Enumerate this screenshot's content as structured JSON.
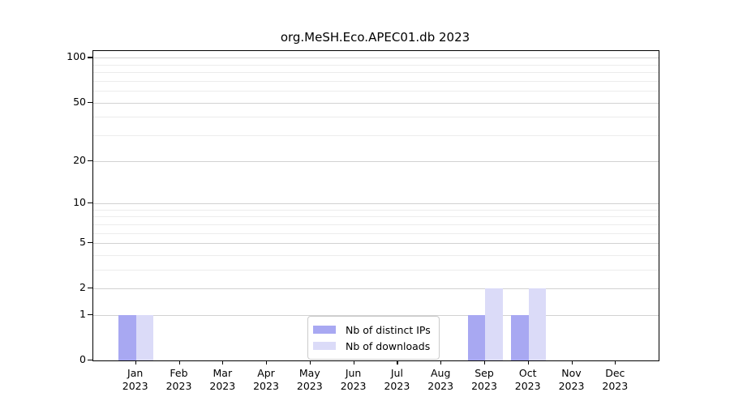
{
  "title": "org.MeSH.Eco.APEC01.db 2023",
  "colors": {
    "distinct_ips": "#a8a8f2",
    "downloads": "#dbdbf8",
    "grid_major": "#d2d2d2",
    "grid_minor": "#ececec",
    "axis": "#000000"
  },
  "legend": {
    "items": [
      {
        "label": "Nb of distinct IPs",
        "color_key": "distinct_ips"
      },
      {
        "label": "Nb of downloads",
        "color_key": "downloads"
      }
    ]
  },
  "chart_data": {
    "type": "bar",
    "title": "org.MeSH.Eco.APEC01.db 2023",
    "categories": [
      "Jan",
      "Feb",
      "Mar",
      "Apr",
      "May",
      "Jun",
      "Jul",
      "Aug",
      "Sep",
      "Oct",
      "Nov",
      "Dec"
    ],
    "year": "2023",
    "series": [
      {
        "name": "Nb of distinct IPs",
        "color_key": "distinct_ips",
        "values": [
          1,
          0,
          0,
          0,
          0,
          0,
          0,
          0,
          1,
          1,
          0,
          0
        ]
      },
      {
        "name": "Nb of downloads",
        "color_key": "downloads",
        "values": [
          1,
          0,
          0,
          0,
          0,
          0,
          0,
          0,
          2,
          2,
          0,
          0
        ]
      }
    ],
    "xlabel": "",
    "ylabel": "",
    "yscale": "log1p",
    "ylim": [
      0,
      111
    ],
    "yticks_major": [
      0,
      1,
      2,
      5,
      10,
      20,
      50,
      100
    ],
    "yticks_minor": [
      3,
      4,
      6,
      7,
      8,
      9,
      30,
      40,
      60,
      70,
      80,
      90
    ],
    "grid": true,
    "legend_position": "lower center"
  }
}
